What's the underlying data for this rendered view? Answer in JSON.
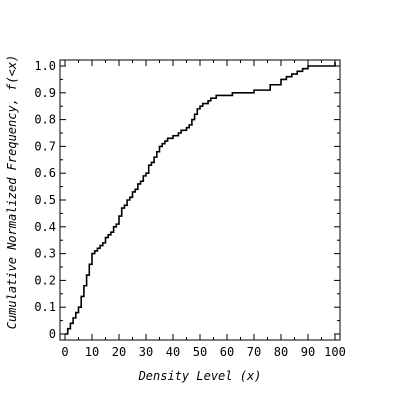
{
  "chart_data": {
    "type": "line",
    "step": true,
    "xlabel": "Density Level (x)",
    "ylabel": "Cumulative Normalized Frequency, f(<x)",
    "xlim": [
      0,
      100
    ],
    "ylim": [
      0,
      1.0
    ],
    "x_ticks": [
      "0",
      "10",
      "20",
      "30",
      "40",
      "50",
      "60",
      "70",
      "80",
      "90",
      "100"
    ],
    "y_ticks": [
      "0",
      "0.1",
      "0.2",
      "0.3",
      "0.4",
      "0.5",
      "0.6",
      "0.7",
      "0.8",
      "0.9",
      "1.0"
    ],
    "grid": false,
    "series": [
      {
        "x": [
          0,
          1,
          2,
          3,
          4,
          5,
          6,
          7,
          8,
          9,
          10,
          11,
          12,
          13,
          14,
          15,
          16,
          17,
          18,
          19,
          20,
          21,
          22,
          23,
          24,
          25,
          26,
          27,
          28,
          29,
          30,
          31,
          32,
          33,
          34,
          35,
          36,
          37,
          38,
          39,
          40,
          41,
          42,
          43,
          44,
          45,
          46,
          47,
          48,
          49,
          50,
          51,
          52,
          53,
          54,
          55,
          56,
          57,
          58,
          59,
          60,
          62,
          64,
          66,
          68,
          70,
          72,
          74,
          76,
          78,
          80,
          82,
          84,
          86,
          88,
          90,
          92,
          94,
          96,
          98,
          99,
          100
        ],
        "values": [
          0.0,
          0.02,
          0.04,
          0.06,
          0.08,
          0.1,
          0.14,
          0.18,
          0.22,
          0.26,
          0.3,
          0.31,
          0.32,
          0.33,
          0.34,
          0.36,
          0.37,
          0.38,
          0.4,
          0.41,
          0.44,
          0.47,
          0.48,
          0.5,
          0.51,
          0.53,
          0.54,
          0.56,
          0.57,
          0.59,
          0.6,
          0.63,
          0.64,
          0.66,
          0.68,
          0.7,
          0.71,
          0.72,
          0.73,
          0.73,
          0.74,
          0.74,
          0.75,
          0.76,
          0.76,
          0.77,
          0.78,
          0.8,
          0.82,
          0.84,
          0.85,
          0.86,
          0.86,
          0.87,
          0.88,
          0.88,
          0.89,
          0.89,
          0.89,
          0.89,
          0.89,
          0.9,
          0.9,
          0.9,
          0.9,
          0.91,
          0.91,
          0.91,
          0.93,
          0.93,
          0.95,
          0.96,
          0.97,
          0.98,
          0.99,
          1.0,
          1.0,
          1.0,
          1.0,
          1.0,
          1.0,
          1.0
        ]
      }
    ]
  }
}
